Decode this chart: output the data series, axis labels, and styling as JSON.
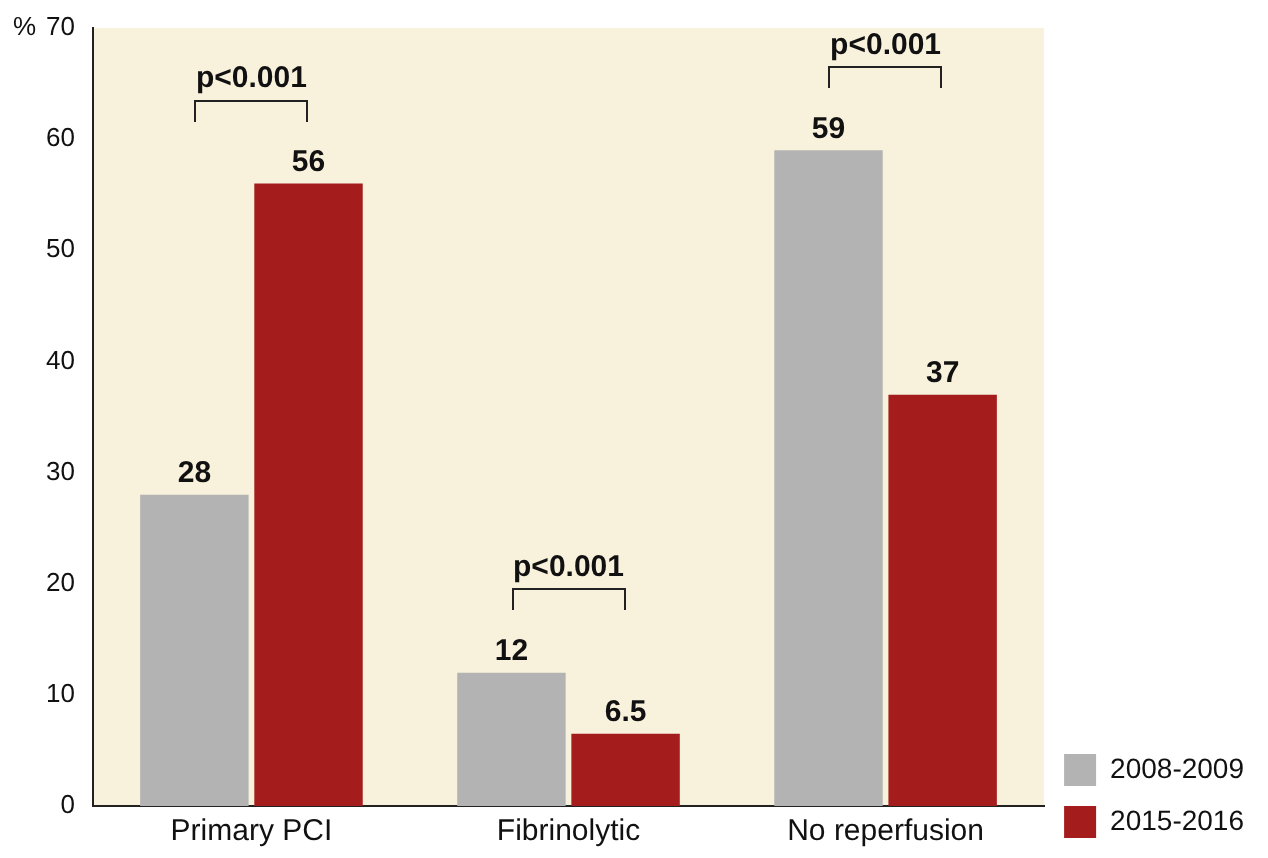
{
  "chart_data": {
    "type": "bar",
    "ylabel": "%",
    "categories": [
      "Primary PCI",
      "Fibrinolytic",
      "No reperfusion"
    ],
    "series": [
      {
        "name": "2008-2009",
        "color": "#b3b3b3",
        "values": [
          28,
          12,
          59
        ]
      },
      {
        "name": "2015-2016",
        "color": "#a51c1c",
        "values": [
          56,
          6.5,
          37
        ]
      }
    ],
    "ylim": [
      0,
      70
    ],
    "yticks": [
      0,
      10,
      20,
      30,
      40,
      50,
      60,
      70
    ],
    "grid": false,
    "legend": "bottom right",
    "data_labels": true,
    "annotations": [
      "p<0.001",
      "p<0.001",
      "p<0.001"
    ]
  }
}
